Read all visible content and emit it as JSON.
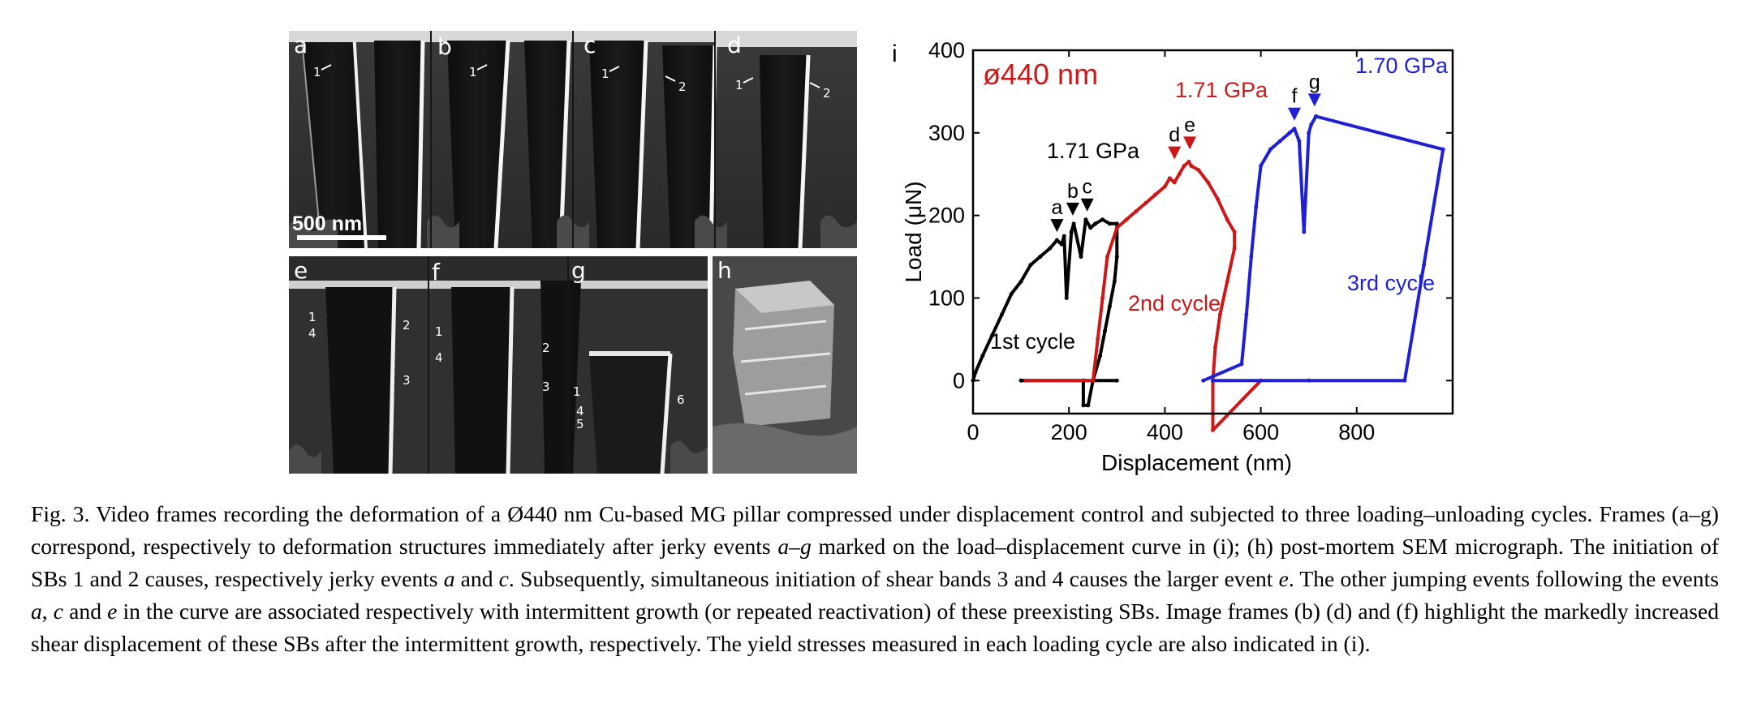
{
  "panels": {
    "top_strip": {
      "frames": [
        {
          "label": "a",
          "sbs": [
            "1"
          ]
        },
        {
          "label": "b",
          "sbs": [
            "1"
          ]
        },
        {
          "label": "c",
          "sbs": [
            "1",
            "2"
          ]
        },
        {
          "label": "d",
          "sbs": [
            "1",
            "2"
          ]
        }
      ],
      "scale_bar": "500 nm"
    },
    "bottom_strip": {
      "frames": [
        {
          "label": "e",
          "sbs": [
            "1",
            "4",
            "2",
            "3"
          ]
        },
        {
          "label": "f",
          "sbs": [
            "1",
            "4",
            "2",
            "3"
          ]
        },
        {
          "label": "g",
          "sbs": [
            "1",
            "4",
            "5",
            "6"
          ]
        }
      ]
    },
    "postmortem": {
      "label": "h"
    }
  },
  "chart_data": {
    "type": "line",
    "panel_label": "i",
    "title": "ø440 nm",
    "xlabel": "Displacement (nm)",
    "ylabel": "Load (μN)",
    "xlim": [
      0,
      1000
    ],
    "ylim": [
      -40,
      400
    ],
    "xticks": [
      0,
      200,
      400,
      600,
      800
    ],
    "yticks": [
      0,
      100,
      200,
      300,
      400
    ],
    "series": [
      {
        "name": "1st cycle",
        "color": "#000000",
        "x": [
          0,
          5,
          20,
          40,
          60,
          80,
          100,
          120,
          140,
          160,
          175,
          185,
          190,
          195,
          205,
          210,
          225,
          235,
          245,
          255,
          270,
          285,
          300,
          300,
          295,
          285,
          275,
          265,
          250,
          240,
          230,
          230,
          300,
          100
        ],
        "y": [
          0,
          10,
          30,
          55,
          80,
          105,
          120,
          140,
          150,
          160,
          170,
          165,
          175,
          100,
          180,
          190,
          150,
          195,
          185,
          190,
          195,
          190,
          190,
          150,
          120,
          90,
          60,
          30,
          0,
          -30,
          -30,
          0,
          0,
          0
        ]
      },
      {
        "name": "2nd cycle",
        "color": "#cc1818",
        "x": [
          110,
          250,
          260,
          270,
          280,
          300,
          320,
          340,
          360,
          380,
          400,
          410,
          420,
          430,
          440,
          450,
          455,
          470,
          490,
          510,
          530,
          545,
          545,
          530,
          515,
          505,
          500,
          500,
          600
        ],
        "y": [
          0,
          0,
          50,
          100,
          150,
          185,
          195,
          205,
          215,
          225,
          235,
          245,
          240,
          250,
          260,
          265,
          260,
          255,
          240,
          220,
          195,
          180,
          160,
          120,
          80,
          40,
          0,
          -60,
          0
        ]
      },
      {
        "name": "3rd cycle",
        "color": "#1f1fd6",
        "x": [
          480,
          560,
          570,
          580,
          590,
          600,
          620,
          640,
          660,
          670,
          680,
          690,
          700,
          705,
          715,
          715,
          980,
          940,
          900,
          700,
          500
        ],
        "y": [
          0,
          20,
          80,
          150,
          210,
          260,
          280,
          290,
          300,
          305,
          290,
          180,
          300,
          310,
          320,
          320,
          280,
          140,
          0,
          0,
          0
        ]
      }
    ],
    "annotations": [
      {
        "text": "1.71 GPa",
        "color": "#000000"
      },
      {
        "text": "1.71 GPa",
        "color": "#cc1818"
      },
      {
        "text": "1.70 GPa",
        "color": "#1f1fd6"
      },
      {
        "text": "1st cycle",
        "color": "#000000"
      },
      {
        "text": "2nd cycle",
        "color": "#cc1818"
      },
      {
        "text": "3rd cycle",
        "color": "#1f1fd6"
      }
    ],
    "markers": [
      {
        "label": "a",
        "x": 175,
        "y": 170,
        "color": "#000000"
      },
      {
        "label": "b",
        "x": 208,
        "y": 190,
        "color": "#000000"
      },
      {
        "label": "c",
        "x": 238,
        "y": 195,
        "color": "#000000"
      },
      {
        "label": "d",
        "x": 420,
        "y": 258,
        "color": "#cc1818"
      },
      {
        "label": "e",
        "x": 452,
        "y": 270,
        "color": "#cc1818"
      },
      {
        "label": "f",
        "x": 670,
        "y": 305,
        "color": "#1f1fd6"
      },
      {
        "label": "g",
        "x": 712,
        "y": 322,
        "color": "#1f1fd6"
      }
    ]
  },
  "caption": {
    "fig": "Fig. 3.",
    "segments": [
      {
        "t": " Video frames recording the deformation of a Ø440 nm Cu-based MG pillar compressed under displacement control and subjected to three loading–unloading cycles. Frames (a–g) correspond, respectively to deformation structures immediately after jerky events ",
        "i": false
      },
      {
        "t": "a–g",
        "i": true
      },
      {
        "t": " marked on the load–displacement curve in (i); (h) post-mortem SEM micrograph. The initiation of SBs 1 and 2 causes, respectively jerky events ",
        "i": false
      },
      {
        "t": "a",
        "i": true
      },
      {
        "t": " and ",
        "i": false
      },
      {
        "t": "c",
        "i": true
      },
      {
        "t": ". Subsequently, simultaneous initiation of shear bands 3 and 4 causes the larger event ",
        "i": false
      },
      {
        "t": "e",
        "i": true
      },
      {
        "t": ". The other jumping events following the events ",
        "i": false
      },
      {
        "t": "a",
        "i": true
      },
      {
        "t": ", ",
        "i": false
      },
      {
        "t": "c",
        "i": true
      },
      {
        "t": " and ",
        "i": false
      },
      {
        "t": "e",
        "i": true
      },
      {
        "t": " in the curve are associated respectively with intermittent growth (or repeated reactivation) of these preexisting SBs. Image frames (b) (d) and (f) highlight the markedly increased shear displacement of these SBs after the intermittent growth, respectively. The yield stresses measured in each loading cycle are also indicated in (i).",
        "i": false
      }
    ]
  }
}
